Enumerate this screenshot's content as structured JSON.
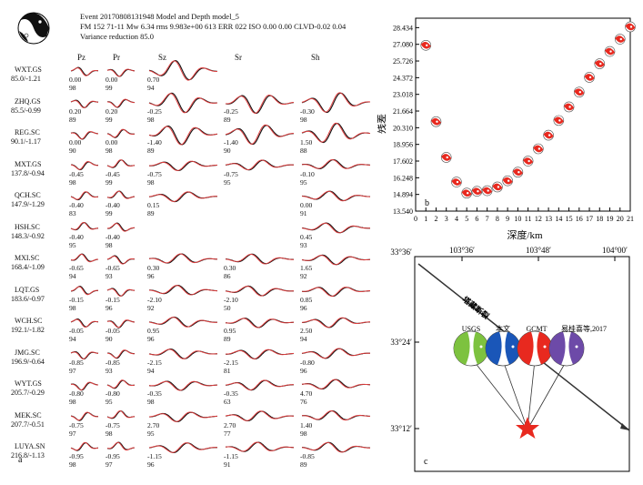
{
  "panel_a": {
    "tag": "a",
    "header_lines": [
      "Event 20170808131948 Model and Depth model_5",
      "FM 152 71-11 Mw 6.34 rms 9.983e+00 613 ERR 022 ISO 0.00 0.00 CLVD-0.02 0.04",
      "Variance reduction 85.0"
    ],
    "columns": [
      "Pz",
      "Pr",
      "Sz",
      "Sr",
      "Sh"
    ],
    "stations": [
      {
        "name": "WXT.GS",
        "dist": "85.0/-1.21",
        "cells": [
          [
            "0.00",
            "98"
          ],
          [
            "0.00",
            "99"
          ],
          [
            "0.70",
            "94"
          ],
          null,
          null
        ]
      },
      {
        "name": "ZHQ.GS",
        "dist": "85.5/-0.99",
        "cells": [
          [
            "0.20",
            "89"
          ],
          [
            "0.20",
            "99"
          ],
          [
            "-0.25",
            "98"
          ],
          [
            "-0.25",
            "89"
          ],
          [
            "-0.30",
            "98"
          ]
        ]
      },
      {
        "name": "REG.SC",
        "dist": "90.1/-1.17",
        "cells": [
          [
            "0.00",
            "90"
          ],
          [
            "0.00",
            "98"
          ],
          [
            "-1.40",
            "89"
          ],
          [
            "-1.40",
            "90"
          ],
          [
            "1.50",
            "88"
          ]
        ]
      },
      {
        "name": "MXT.GS",
        "dist": "137.8/-0.94",
        "cells": [
          [
            "-0.45",
            "98"
          ],
          [
            "-0.45",
            "99"
          ],
          [
            "-0.75",
            "98"
          ],
          [
            "-0.75",
            "95"
          ],
          [
            "-0.10",
            "95"
          ]
        ]
      },
      {
        "name": "QCH.SC",
        "dist": "147.9/-1.29",
        "cells": [
          [
            "-0.40",
            "83"
          ],
          [
            "-0.40",
            "99"
          ],
          [
            "0.15",
            "89"
          ],
          null,
          [
            "0.00",
            "91"
          ]
        ]
      },
      {
        "name": "HSH.SC",
        "dist": "148.3/-0.92",
        "cells": [
          [
            "-0.40",
            "95"
          ],
          [
            "-0.40",
            "98"
          ],
          null,
          null,
          [
            "0.45",
            "93"
          ]
        ]
      },
      {
        "name": "MXI.SC",
        "dist": "168.4/-1.09",
        "cells": [
          [
            "-0.65",
            "94"
          ],
          [
            "-0.65",
            "93"
          ],
          [
            "0.30",
            "96"
          ],
          [
            "0.30",
            "86"
          ],
          [
            "1.65",
            "92"
          ]
        ]
      },
      {
        "name": "LQT.GS",
        "dist": "183.6/-0.97",
        "cells": [
          [
            "-0.15",
            "98"
          ],
          [
            "-0.15",
            "96"
          ],
          [
            "-2.10",
            "92"
          ],
          [
            "-2.10",
            "50"
          ],
          [
            "0.85",
            "96"
          ]
        ]
      },
      {
        "name": "WCH.SC",
        "dist": "192.1/-1.82",
        "cells": [
          [
            "-0.05",
            "94"
          ],
          [
            "-0.05",
            "90"
          ],
          [
            "0.95",
            "96"
          ],
          [
            "0.95",
            "89"
          ],
          [
            "2.50",
            "94"
          ]
        ]
      },
      {
        "name": "JMG.SC",
        "dist": "196.9/-0.64",
        "cells": [
          [
            "-0.85",
            "97"
          ],
          [
            "-0.85",
            "93"
          ],
          [
            "-2.15",
            "94"
          ],
          [
            "-2.15",
            "81"
          ],
          [
            "-0.80",
            "96"
          ]
        ]
      },
      {
        "name": "WYT.GS",
        "dist": "205.7/-0.29",
        "cells": [
          [
            "-0.80",
            "98"
          ],
          [
            "-0.80",
            "95"
          ],
          [
            "-0.35",
            "98"
          ],
          [
            "-0.35",
            "63"
          ],
          [
            "4.70",
            "76"
          ]
        ]
      },
      {
        "name": "MEK.SC",
        "dist": "207.7/-0.51",
        "cells": [
          [
            "-0.75",
            "97"
          ],
          [
            "-0.75",
            "98"
          ],
          [
            "2.70",
            "95"
          ],
          [
            "2.70",
            "77"
          ],
          [
            "1.40",
            "98"
          ]
        ]
      },
      {
        "name": "LUYA.SN",
        "dist": "216.8/-1.13",
        "cells": [
          [
            "-0.95",
            "98"
          ],
          [
            "-0.95",
            "97"
          ],
          [
            "-1.15",
            "96"
          ],
          [
            "-1.15",
            "91"
          ],
          [
            "-0.85",
            "89"
          ]
        ]
      }
    ]
  },
  "panel_b": {
    "tag": "b",
    "chart_data": {
      "type": "scatter",
      "title": "",
      "xlabel": "深度/km",
      "ylabel": "残差",
      "xlim": [
        0,
        21
      ],
      "ylim": [
        13.54,
        29.2
      ],
      "xticks": [
        0,
        1,
        2,
        3,
        4,
        5,
        6,
        7,
        8,
        9,
        10,
        11,
        12,
        13,
        14,
        15,
        16,
        17,
        18,
        19,
        20,
        21
      ],
      "yticks": [
        "13.540",
        "14.894",
        "16.248",
        "17.602",
        "18.956",
        "20.310",
        "21.664",
        "23.018",
        "24.372",
        "25.726",
        "27.080",
        "28.434"
      ],
      "points": [
        {
          "x": 1,
          "y": 27.0
        },
        {
          "x": 2,
          "y": 20.8
        },
        {
          "x": 3,
          "y": 17.9
        },
        {
          "x": 4,
          "y": 15.9
        },
        {
          "x": 5,
          "y": 15.0
        },
        {
          "x": 6,
          "y": 15.15
        },
        {
          "x": 7,
          "y": 15.2
        },
        {
          "x": 8,
          "y": 15.5
        },
        {
          "x": 9,
          "y": 16.0
        },
        {
          "x": 10,
          "y": 16.7
        },
        {
          "x": 11,
          "y": 17.6
        },
        {
          "x": 12,
          "y": 18.6
        },
        {
          "x": 13,
          "y": 19.7
        },
        {
          "x": 14,
          "y": 20.9
        },
        {
          "x": 15,
          "y": 22.0
        },
        {
          "x": 16,
          "y": 23.2
        },
        {
          "x": 17,
          "y": 24.4
        },
        {
          "x": 18,
          "y": 25.5
        },
        {
          "x": 19,
          "y": 26.5
        },
        {
          "x": 20,
          "y": 27.5
        },
        {
          "x": 21,
          "y": 28.5
        }
      ]
    }
  },
  "panel_c": {
    "tag": "c",
    "lon_labels": [
      "103°36′",
      "103°48′",
      "104°00′"
    ],
    "lat_labels": [
      "33°36′",
      "33°24′",
      "33°12′"
    ],
    "fault_label": "塔藏断裂",
    "solutions": [
      "USGS",
      "本文",
      "GCMT",
      "易桂喜等,2017"
    ],
    "beachball_colors": [
      "#7dc23f",
      "#1a56b8",
      "#e8291f",
      "#6d4aa8"
    ],
    "epicenter_color": "#e8291f"
  }
}
